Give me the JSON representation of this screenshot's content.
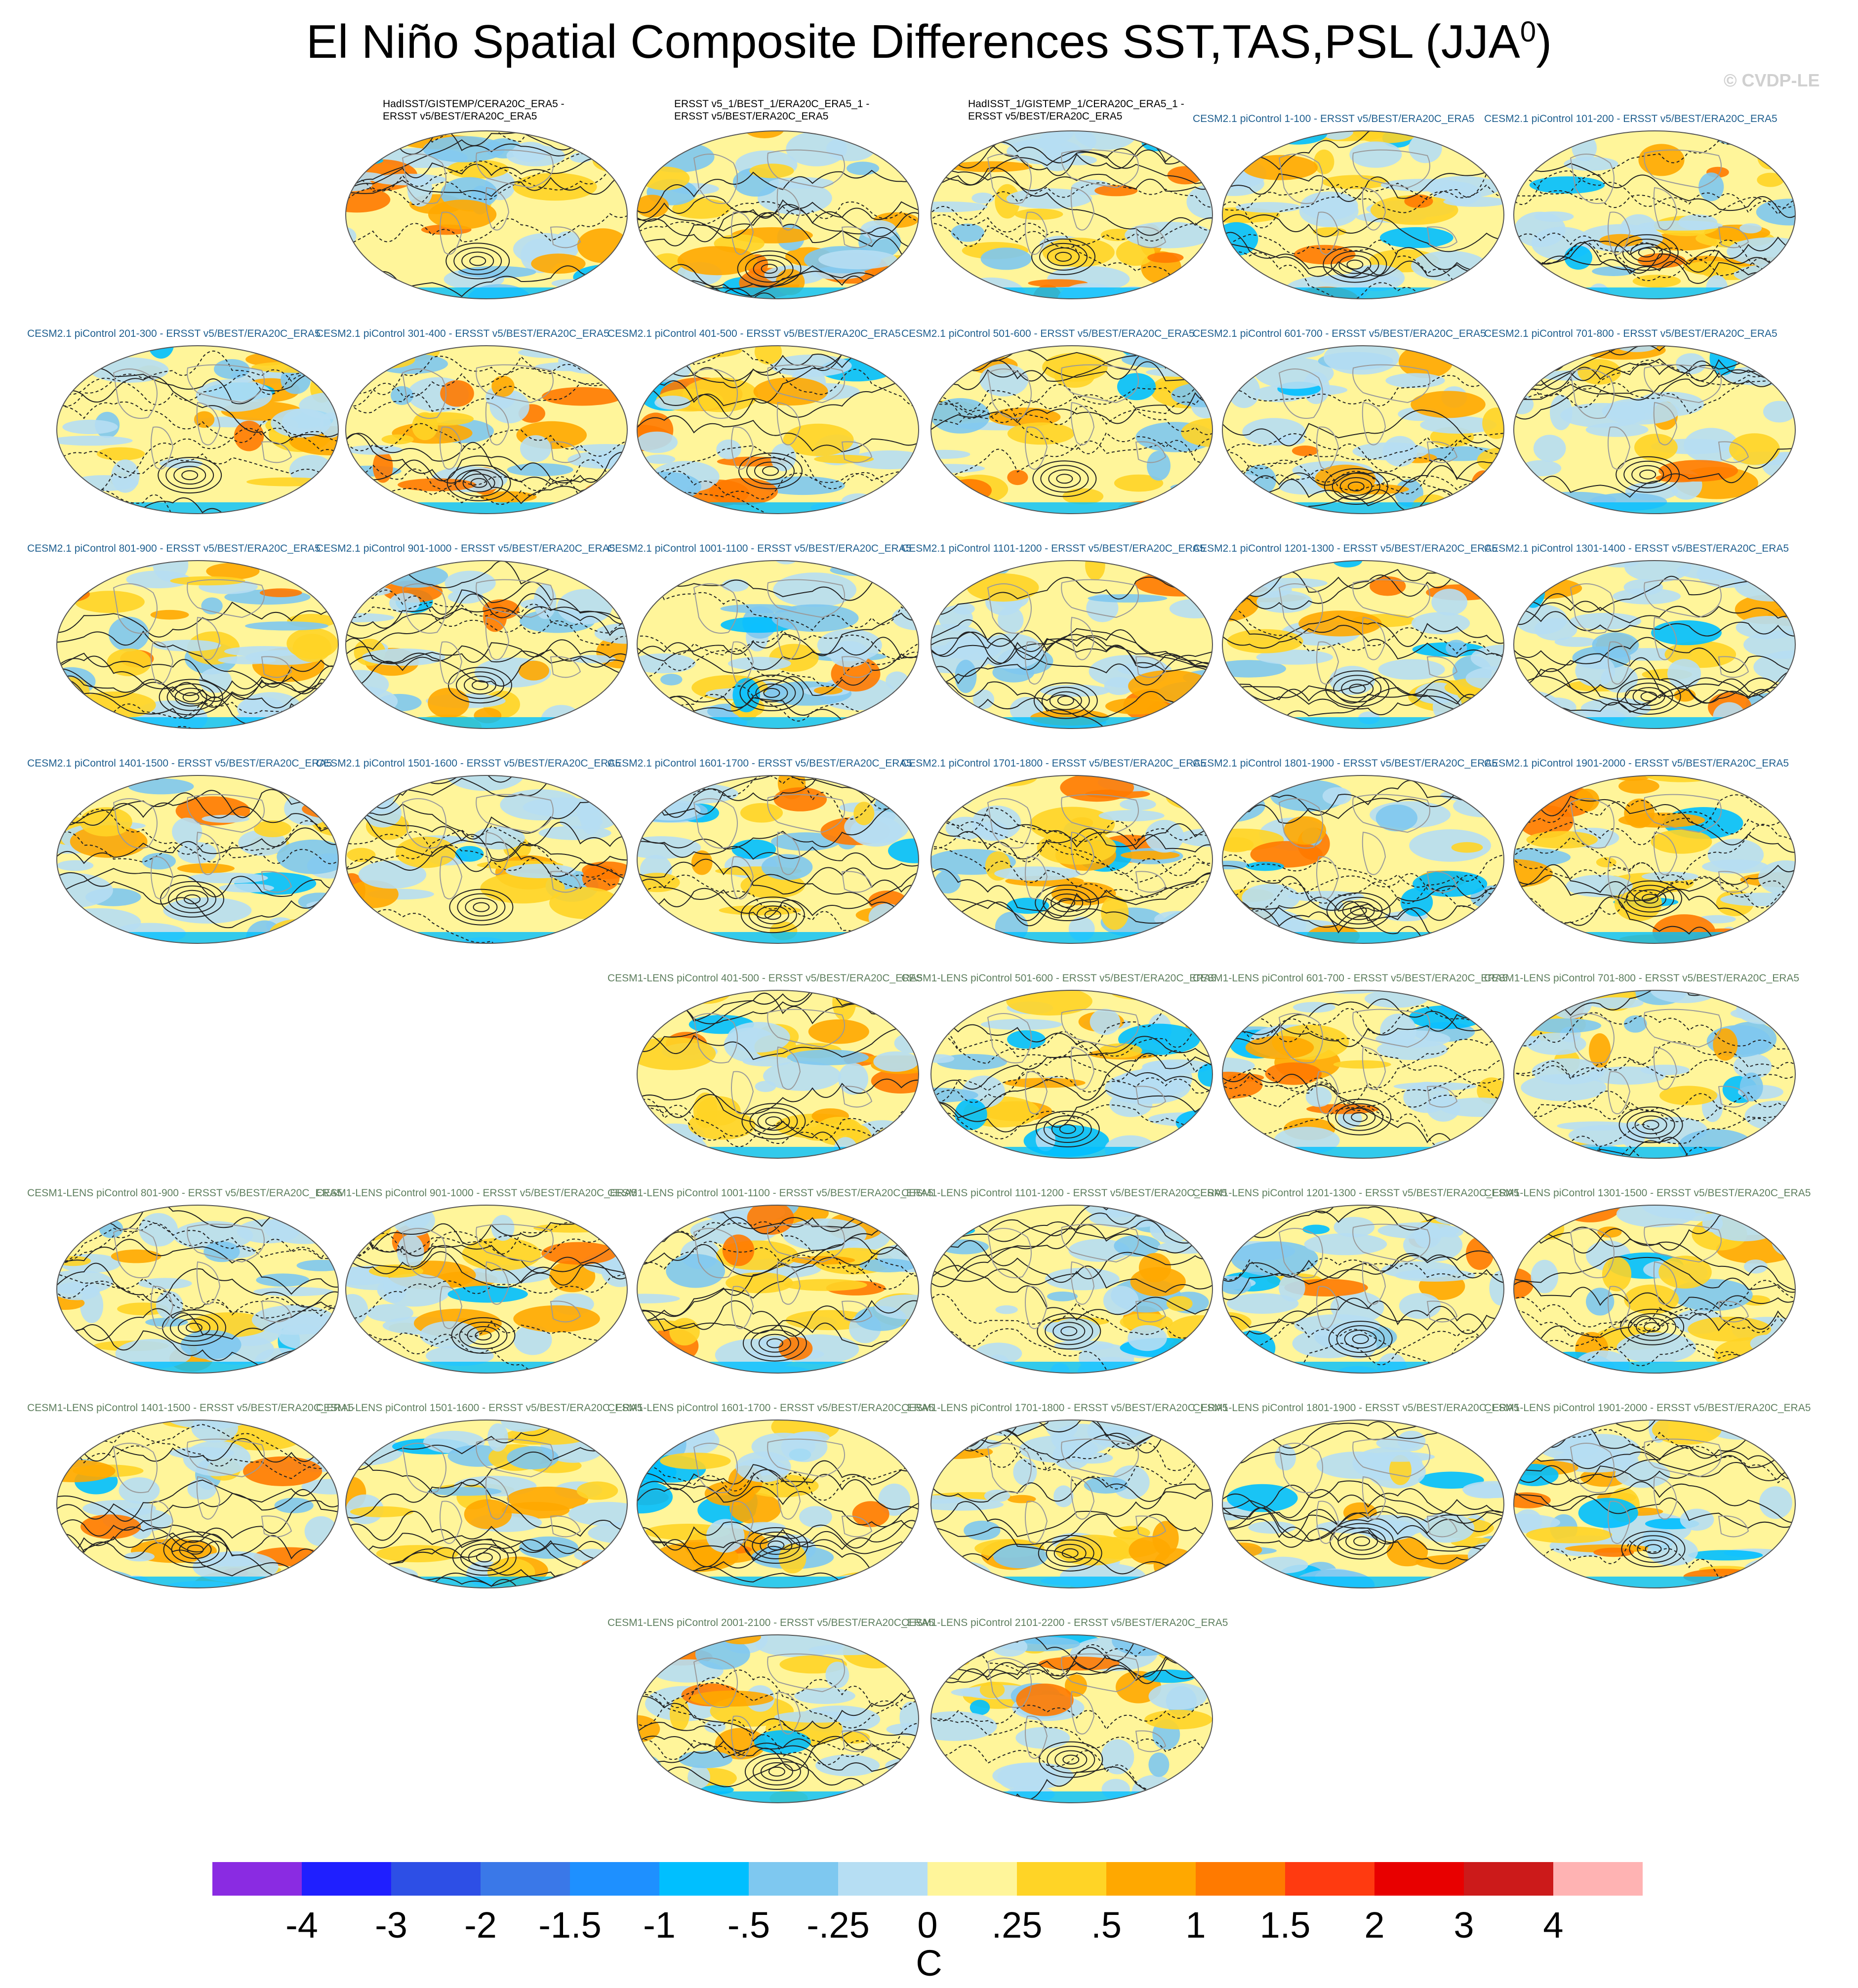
{
  "title": {
    "main": "El Niño Spatial Composite Differences SST,TAS,PSL (JJA",
    "sup": "0",
    "close": ")"
  },
  "watermark": "© CVDP-LE",
  "panels": [
    {
      "label_lines": [
        "HadISST/GISTEMP/CERA20C_ERA5 -",
        "ERSST v5/BEST/ERA20C_ERA5"
      ],
      "group": "obs"
    },
    {
      "label_lines": [
        "ERSST v5_1/BEST_1/ERA20C_ERA5_1 -",
        "ERSST v5/BEST/ERA20C_ERA5"
      ],
      "group": "obs"
    },
    {
      "label_lines": [
        "HadISST_1/GISTEMP_1/CERA20C_ERA5_1 -",
        "ERSST v5/BEST/ERA20C_ERA5"
      ],
      "group": "obs"
    },
    {
      "label_lines": [
        "CESM2.1 piControl 1-100 - ERSST v5/BEST/ERA20C_ERA5"
      ],
      "group": "cesm2"
    },
    {
      "label_lines": [
        "CESM2.1 piControl 101-200 - ERSST v5/BEST/ERA20C_ERA5"
      ],
      "group": "cesm2"
    },
    {
      "label_lines": [
        "CESM2.1 piControl 201-300 - ERSST v5/BEST/ERA20C_ERA5"
      ],
      "group": "cesm2"
    },
    {
      "label_lines": [
        "CESM2.1 piControl 301-400 - ERSST v5/BEST/ERA20C_ERA5"
      ],
      "group": "cesm2"
    },
    {
      "label_lines": [
        "CESM2.1 piControl 401-500 - ERSST v5/BEST/ERA20C_ERA5"
      ],
      "group": "cesm2"
    },
    {
      "label_lines": [
        "CESM2.1 piControl 501-600 - ERSST v5/BEST/ERA20C_ERA5"
      ],
      "group": "cesm2"
    },
    {
      "label_lines": [
        "CESM2.1 piControl 601-700 - ERSST v5/BEST/ERA20C_ERA5"
      ],
      "group": "cesm2"
    },
    {
      "label_lines": [
        "CESM2.1 piControl 701-800 - ERSST v5/BEST/ERA20C_ERA5"
      ],
      "group": "cesm2"
    },
    {
      "label_lines": [
        "CESM2.1 piControl 801-900 - ERSST v5/BEST/ERA20C_ERA5"
      ],
      "group": "cesm2"
    },
    {
      "label_lines": [
        "CESM2.1 piControl 901-1000 - ERSST v5/BEST/ERA20C_ERA5"
      ],
      "group": "cesm2"
    },
    {
      "label_lines": [
        "CESM2.1 piControl 1001-1100 - ERSST v5/BEST/ERA20C_ERA5"
      ],
      "group": "cesm2"
    },
    {
      "label_lines": [
        "CESM2.1 piControl 1101-1200 - ERSST v5/BEST/ERA20C_ERA5"
      ],
      "group": "cesm2"
    },
    {
      "label_lines": [
        "CESM2.1 piControl 1201-1300 - ERSST v5/BEST/ERA20C_ERA5"
      ],
      "group": "cesm2"
    },
    {
      "label_lines": [
        "CESM2.1 piControl 1301-1400 - ERSST v5/BEST/ERA20C_ERA5"
      ],
      "group": "cesm2"
    },
    {
      "label_lines": [
        "CESM2.1 piControl 1401-1500 - ERSST v5/BEST/ERA20C_ERA5"
      ],
      "group": "cesm2"
    },
    {
      "label_lines": [
        "CESM2.1 piControl 1501-1600 - ERSST v5/BEST/ERA20C_ERA5"
      ],
      "group": "cesm2"
    },
    {
      "label_lines": [
        "CESM2.1 piControl 1601-1700 - ERSST v5/BEST/ERA20C_ERA5"
      ],
      "group": "cesm2"
    },
    {
      "label_lines": [
        "CESM2.1 piControl 1701-1800 - ERSST v5/BEST/ERA20C_ERA5"
      ],
      "group": "cesm2"
    },
    {
      "label_lines": [
        "CESM2.1 piControl 1801-1900 - ERSST v5/BEST/ERA20C_ERA5"
      ],
      "group": "cesm2"
    },
    {
      "label_lines": [
        "CESM2.1 piControl 1901-2000 - ERSST v5/BEST/ERA20C_ERA5"
      ],
      "group": "cesm2"
    },
    {
      "label_lines": [
        "CESM1-LENS piControl 401-500 - ERSST v5/BEST/ERA20C_ERA5"
      ],
      "group": "cesm1"
    },
    {
      "label_lines": [
        "CESM1-LENS piControl 501-600 - ERSST v5/BEST/ERA20C_ERA5"
      ],
      "group": "cesm1"
    },
    {
      "label_lines": [
        "CESM1-LENS piControl 601-700 - ERSST v5/BEST/ERA20C_ERA5"
      ],
      "group": "cesm1"
    },
    {
      "label_lines": [
        "CESM1-LENS piControl 701-800 - ERSST v5/BEST/ERA20C_ERA5"
      ],
      "group": "cesm1"
    },
    {
      "label_lines": [
        "CESM1-LENS piControl 801-900 - ERSST v5/BEST/ERA20C_ERA5"
      ],
      "group": "cesm1"
    },
    {
      "label_lines": [
        "CESM1-LENS piControl 901-1000 - ERSST v5/BEST/ERA20C_ERA5"
      ],
      "group": "cesm1"
    },
    {
      "label_lines": [
        "CESM1-LENS piControl 1001-1100 - ERSST v5/BEST/ERA20C_ERA5"
      ],
      "group": "cesm1"
    },
    {
      "label_lines": [
        "CESM1-LENS piControl 1101-1200 - ERSST v5/BEST/ERA20C_ERA5"
      ],
      "group": "cesm1"
    },
    {
      "label_lines": [
        "CESM1-LENS piControl 1201-1300 - ERSST v5/BEST/ERA20C_ERA5"
      ],
      "group": "cesm1"
    },
    {
      "label_lines": [
        "CESM1-LENS piControl 1301-1500 - ERSST v5/BEST/ERA20C_ERA5"
      ],
      "group": "cesm1"
    },
    {
      "label_lines": [
        "CESM1-LENS piControl 1401-1500 - ERSST v5/BEST/ERA20C_ERA5"
      ],
      "group": "cesm1"
    },
    {
      "label_lines": [
        "CESM1-LENS piControl 1501-1600 - ERSST v5/BEST/ERA20C_ERA5"
      ],
      "group": "cesm1"
    },
    {
      "label_lines": [
        "CESM1-LENS piControl 1601-1700 - ERSST v5/BEST/ERA20C_ERA5"
      ],
      "group": "cesm1"
    },
    {
      "label_lines": [
        "CESM1-LENS piControl 1701-1800 - ERSST v5/BEST/ERA20C_ERA5"
      ],
      "group": "cesm1"
    },
    {
      "label_lines": [
        "CESM1-LENS piControl 1801-1900 - ERSST v5/BEST/ERA20C_ERA5"
      ],
      "group": "cesm1"
    },
    {
      "label_lines": [
        "CESM1-LENS piControl 1901-2000 - ERSST v5/BEST/ERA20C_ERA5"
      ],
      "group": "cesm1"
    },
    {
      "label_lines": [
        "CESM1-LENS piControl 2001-2100 - ERSST v5/BEST/ERA20C_ERA5"
      ],
      "group": "cesm1"
    },
    {
      "label_lines": [
        "CESM1-LENS piControl 2101-2200 - ERSST v5/BEST/ERA20C_ERA5"
      ],
      "group": "cesm1"
    }
  ],
  "colorbar": {
    "colors": [
      "#8a2be2",
      "#1f1fff",
      "#2d4fe6",
      "#3a78e8",
      "#1e90ff",
      "#00bfff",
      "#7ec8f0",
      "#b6def3",
      "#fff59a",
      "#ffd426",
      "#ffa800",
      "#ff7a00",
      "#ff3a10",
      "#e80000",
      "#cc1a1a",
      "#ffb3b3"
    ],
    "labels": [
      "-4",
      "-3",
      "-2",
      "-1.5",
      "-1",
      "-.5",
      "-.25",
      "0",
      ".25",
      ".5",
      "1",
      "1.5",
      "2",
      "3",
      "4"
    ],
    "unit": "C"
  }
}
